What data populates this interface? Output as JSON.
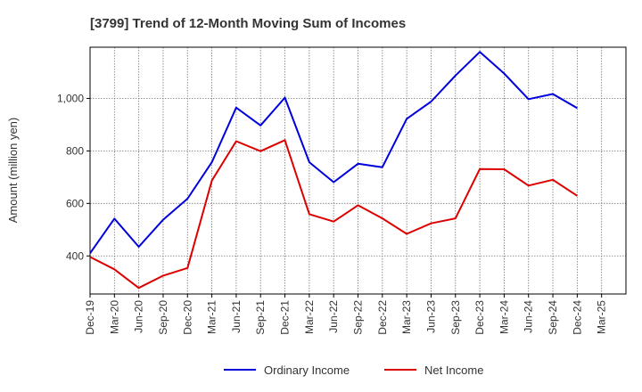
{
  "chart_data": {
    "type": "line",
    "title": "[3799]  Trend of 12-Month Moving Sum of Incomes",
    "xlabel": "",
    "ylabel": "Amount (million yen)",
    "categories": [
      "Dec-19",
      "Mar-20",
      "Jun-20",
      "Sep-20",
      "Dec-20",
      "Mar-21",
      "Jun-21",
      "Sep-21",
      "Dec-21",
      "Mar-22",
      "Jun-22",
      "Sep-22",
      "Dec-22",
      "Mar-23",
      "Jun-23",
      "Sep-23",
      "Dec-23",
      "Mar-24",
      "Jun-24",
      "Sep-24",
      "Dec-24",
      "Mar-25"
    ],
    "ylim": [
      255,
      1195
    ],
    "yticks": [
      400,
      600,
      800,
      1000
    ],
    "ytick_labels": [
      "400",
      "600",
      "800",
      "1,000"
    ],
    "grid": true,
    "legend_position": "bottom-center",
    "series": [
      {
        "name": "Ordinary Income",
        "color": "#0000dd",
        "values": [
          410,
          542,
          435,
          538,
          618,
          757,
          965,
          897,
          1003,
          757,
          681,
          751,
          738,
          922,
          988,
          1087,
          1177,
          1095,
          997,
          1017,
          963,
          null
        ]
      },
      {
        "name": "Net Income",
        "color": "#dd0000",
        "values": [
          396,
          349,
          278,
          325,
          354,
          687,
          837,
          799,
          841,
          559,
          531,
          593,
          543,
          484,
          524,
          543,
          731,
          730,
          668,
          690,
          629,
          null
        ]
      }
    ]
  }
}
